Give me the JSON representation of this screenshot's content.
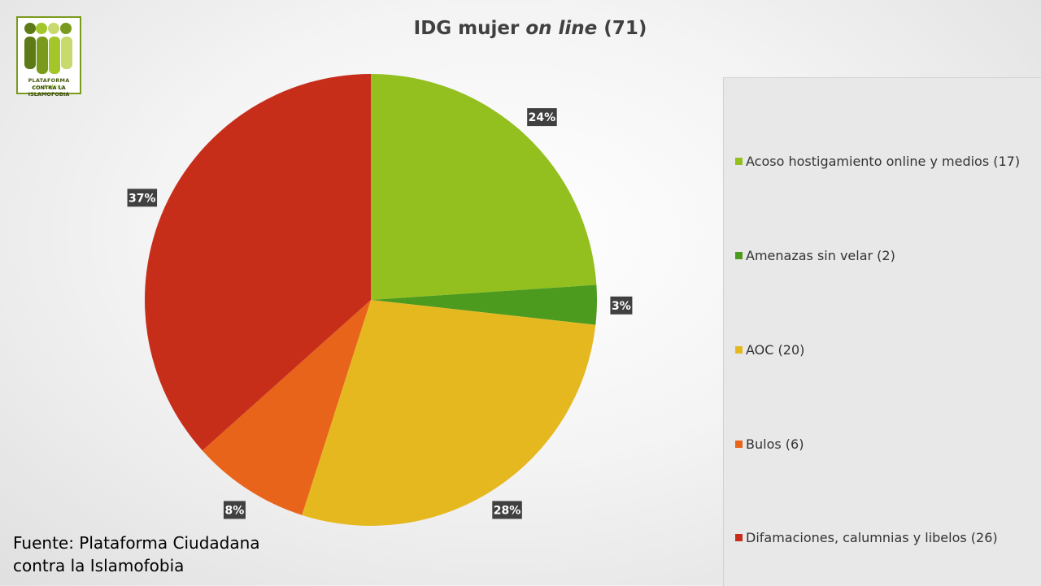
{
  "logo": {
    "line1_bold": "PLATAFORMA",
    "line1_script": "ciudadana",
    "line2": "CONTRA LA ISLAMOFOBIA",
    "colors": [
      "#5e7a16",
      "#7a9a1e",
      "#a3c62a",
      "#c8d96e"
    ]
  },
  "title": {
    "prefix": "IDG mujer ",
    "italic": "on line",
    "suffix": " (71)"
  },
  "source": {
    "line1": "Fuente: Plataforma Ciudadana",
    "line2": "contra la Islamofobia"
  },
  "chart_data": {
    "type": "pie",
    "title": "IDG mujer on line (71)",
    "legend_position": "right",
    "slices": [
      {
        "name": "Acoso hostigamiento online y medios (17)",
        "value": 17,
        "label": "24%",
        "color": "#93c01f"
      },
      {
        "name": "Amenazas sin velar (2)",
        "value": 2,
        "label": "3%",
        "color": "#4c9a1e"
      },
      {
        "name": "AOC (20)",
        "value": 20,
        "label": "28%",
        "color": "#e6b820"
      },
      {
        "name": "Bulos (6)",
        "value": 6,
        "label": "8%",
        "color": "#e8641a"
      },
      {
        "name": "Difamaciones, calumnias y libelos (26)",
        "value": 26,
        "label": "37%",
        "color": "#c72e1a"
      }
    ]
  }
}
